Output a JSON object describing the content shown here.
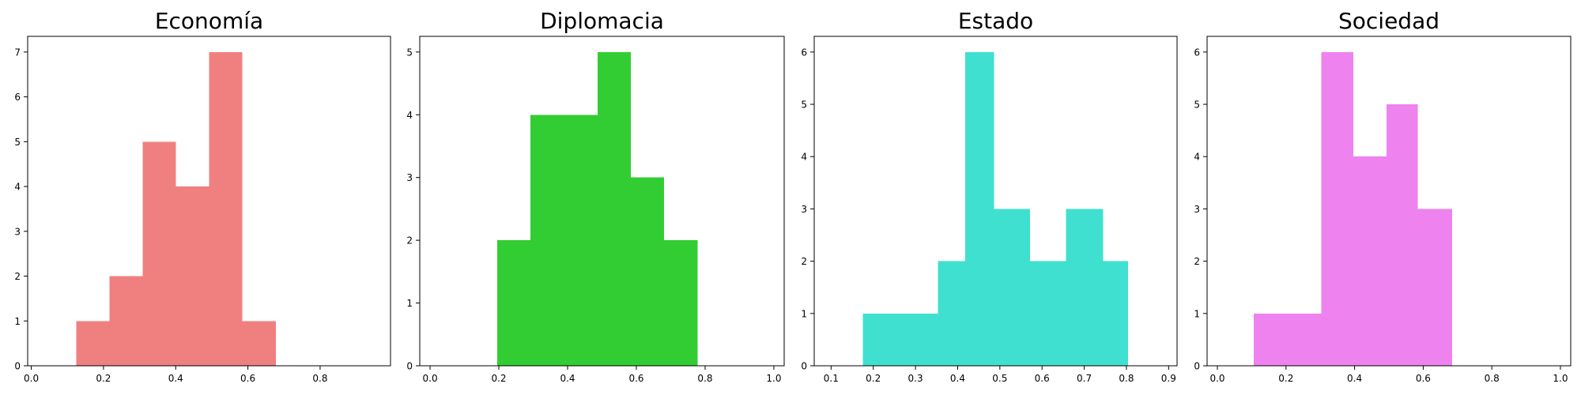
{
  "chart_data": [
    {
      "type": "histogram",
      "title": "Economía",
      "color": "#F08080",
      "xlim": [
        -0.01,
        0.995
      ],
      "ylim": [
        0,
        7.35
      ],
      "xticks": [
        0.0,
        0.2,
        0.4,
        0.6,
        0.8
      ],
      "xtick_labels": [
        "0.0",
        "0.2",
        "0.4",
        "0.6",
        "0.8"
      ],
      "yticks": [
        0,
        1,
        2,
        3,
        4,
        5,
        6,
        7
      ],
      "ytick_labels": [
        "0",
        "1",
        "2",
        "3",
        "4",
        "5",
        "6",
        "7"
      ],
      "bins": [
        0.125,
        0.217,
        0.309,
        0.401,
        0.493,
        0.585,
        0.677
      ],
      "counts": [
        1,
        2,
        5,
        4,
        7,
        1
      ]
    },
    {
      "type": "histogram",
      "title": "Diplomacia",
      "color": "#32CD32",
      "xlim": [
        -0.03,
        1.03
      ],
      "ylim": [
        0,
        5.25
      ],
      "xticks": [
        0.0,
        0.2,
        0.4,
        0.6,
        0.8,
        1.0
      ],
      "xtick_labels": [
        "0.0",
        "0.2",
        "0.4",
        "0.6",
        "0.8",
        "1.0"
      ],
      "yticks": [
        0,
        1,
        2,
        3,
        4,
        5
      ],
      "ytick_labels": [
        "0",
        "1",
        "2",
        "3",
        "4",
        "5"
      ],
      "bins": [
        0.195,
        0.292,
        0.39,
        0.487,
        0.584,
        0.681,
        0.778
      ],
      "counts": [
        2,
        4,
        4,
        5,
        3,
        2
      ]
    },
    {
      "type": "histogram",
      "title": "Estado",
      "color": "#40E0D0",
      "xlim": [
        0.06,
        0.92
      ],
      "ylim": [
        0,
        6.3
      ],
      "xticks": [
        0.1,
        0.2,
        0.3,
        0.4,
        0.5,
        0.6,
        0.7,
        0.8,
        0.9
      ],
      "xtick_labels": [
        "0.1",
        "0.2",
        "0.3",
        "0.4",
        "0.5",
        "0.6",
        "0.7",
        "0.8",
        "0.9"
      ],
      "yticks": [
        0,
        1,
        2,
        3,
        4,
        5,
        6
      ],
      "ytick_labels": [
        "0",
        "1",
        "2",
        "3",
        "4",
        "5",
        "6"
      ],
      "bins": [
        0.175,
        0.2645,
        0.353,
        0.4175,
        0.4865,
        0.5715,
        0.6565,
        0.7445,
        0.8035
      ],
      "counts": [
        1,
        1,
        2,
        6,
        3,
        2,
        3,
        2
      ]
    },
    {
      "type": "histogram",
      "title": "Sociedad",
      "color": "#EE82EE",
      "xlim": [
        -0.03,
        1.03
      ],
      "ylim": [
        0,
        6.3
      ],
      "xticks": [
        0.0,
        0.2,
        0.4,
        0.6,
        0.8,
        1.0
      ],
      "xtick_labels": [
        "0.0",
        "0.2",
        "0.4",
        "0.6",
        "0.8",
        "1.0"
      ],
      "yticks": [
        0,
        1,
        2,
        3,
        4,
        5,
        6
      ],
      "ytick_labels": [
        "0",
        "1",
        "2",
        "3",
        "4",
        "5",
        "6"
      ],
      "bins": [
        0.106,
        0.303,
        0.396,
        0.493,
        0.584,
        0.684
      ],
      "counts": [
        1,
        6,
        4,
        5,
        3
      ]
    }
  ]
}
